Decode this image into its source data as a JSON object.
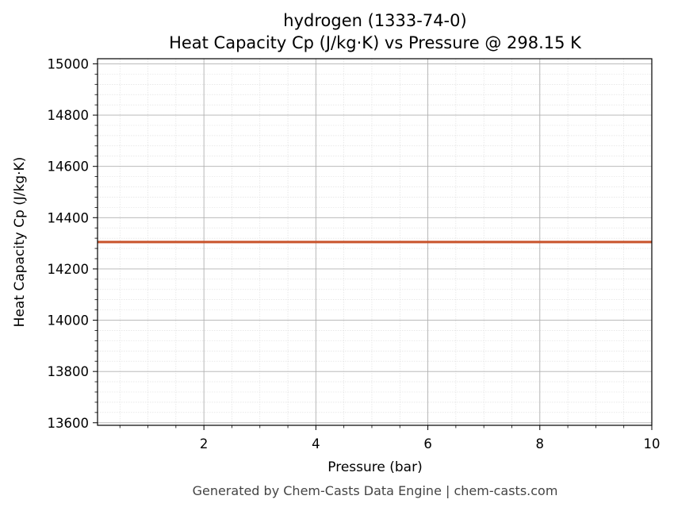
{
  "chart_data": {
    "type": "line",
    "title": "hydrogen (1333-74-0)",
    "subtitle": "Heat Capacity Cp (J/kg·K) vs Pressure @ 298.15 K",
    "xlabel": "Pressure (bar)",
    "ylabel": "Heat Capacity Cp (J/kg·K)",
    "xlim": [
      0.1,
      10
    ],
    "ylim": [
      13590,
      15020
    ],
    "xticks": [
      2,
      4,
      6,
      8,
      10
    ],
    "yticks": [
      13600,
      13800,
      14000,
      14200,
      14400,
      14600,
      14800,
      15000
    ],
    "grid": true,
    "series": [
      {
        "color": "#c8522a",
        "x": [
          0.1,
          1,
          2,
          3,
          4,
          5,
          6,
          7,
          8,
          9,
          10
        ],
        "y": [
          14305,
          14305,
          14305,
          14305,
          14305,
          14305,
          14305,
          14305,
          14305,
          14305,
          14305
        ]
      }
    ]
  },
  "footer": "Generated by Chem-Casts Data Engine | chem-casts.com"
}
